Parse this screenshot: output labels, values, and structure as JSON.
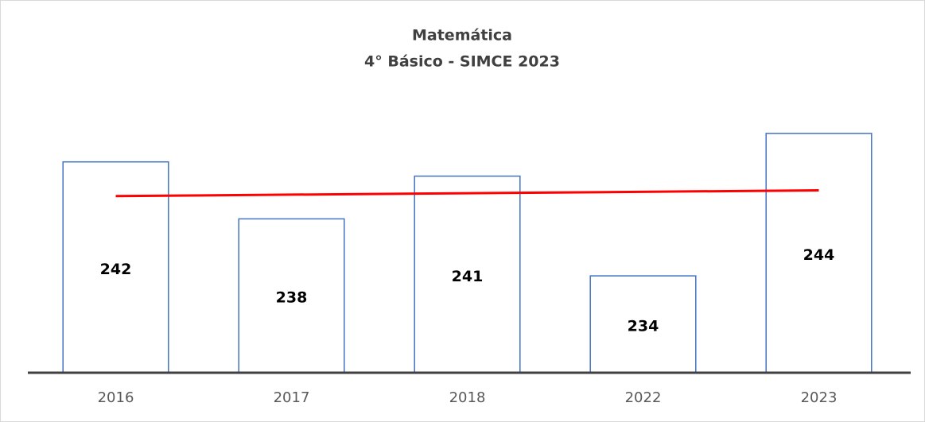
{
  "chart_data": {
    "type": "bar",
    "title": "Matemática",
    "subtitle": "4° Básico - SIMCE 2023",
    "categories": [
      "2016",
      "2017",
      "2018",
      "2022",
      "2023"
    ],
    "values": [
      242,
      238,
      241,
      234,
      244
    ],
    "color": "#4472c4",
    "ylim": [
      227.2,
      246
    ],
    "grid": false,
    "trend_line": {
      "color": "#ff0000",
      "start": 239.6,
      "end": 240.0
    }
  }
}
